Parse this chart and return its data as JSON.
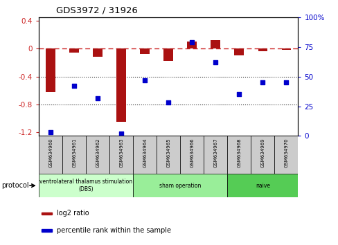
{
  "title": "GDS3972 / 31926",
  "samples": [
    "GSM634960",
    "GSM634961",
    "GSM634962",
    "GSM634963",
    "GSM634964",
    "GSM634965",
    "GSM634966",
    "GSM634967",
    "GSM634968",
    "GSM634969",
    "GSM634970"
  ],
  "log2_ratio": [
    -0.62,
    -0.06,
    -0.12,
    -1.05,
    -0.08,
    -0.18,
    0.1,
    0.12,
    -0.1,
    -0.04,
    -0.02
  ],
  "percentile_rank": [
    3,
    42,
    32,
    2,
    47,
    28,
    79,
    62,
    35,
    45,
    45
  ],
  "ylim_left": [
    -1.25,
    0.45
  ],
  "ylim_right": [
    0,
    100
  ],
  "left_ticks": [
    0.4,
    0.0,
    -0.4,
    -0.8,
    -1.2
  ],
  "right_ticks": [
    100,
    75,
    50,
    25,
    0
  ],
  "groups": [
    {
      "label": "ventrolateral thalamus stimulation\n(DBS)",
      "start": 0,
      "end": 3,
      "color": "#ccffcc"
    },
    {
      "label": "sham operation",
      "start": 4,
      "end": 7,
      "color": "#99ee99"
    },
    {
      "label": "naive",
      "start": 8,
      "end": 10,
      "color": "#55cc55"
    }
  ],
  "bar_color": "#aa1111",
  "scatter_color": "#0000cc",
  "hline_color": "#cc2222",
  "grid_color": "#333333",
  "left_tick_color": "#cc2222",
  "right_tick_color": "#0000cc",
  "legend_labels": [
    "log2 ratio",
    "percentile rank within the sample"
  ],
  "legend_colors": [
    "#aa1111",
    "#0000cc"
  ],
  "bar_width": 0.4
}
